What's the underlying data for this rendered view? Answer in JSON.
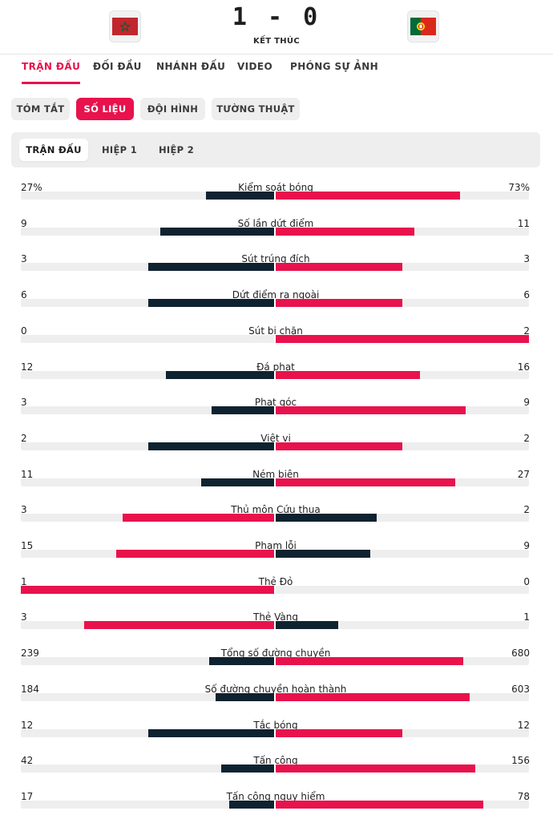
{
  "header": {
    "score": "1 - 0",
    "status": "KẾT THÚC",
    "home_flag": "morocco-flag",
    "away_flag": "portugal-flag"
  },
  "main_tabs": [
    {
      "label": "TRẬN ĐẤU",
      "active": true
    },
    {
      "label": "ĐỐI ĐẦU",
      "active": false
    },
    {
      "label": "NHÁNH ĐẤU",
      "active": false
    },
    {
      "label": "VIDEO",
      "active": false
    },
    {
      "label": "PHÓNG SỰ ẢNH",
      "active": false
    }
  ],
  "sub_tabs": [
    {
      "label": "TÓM TẮT",
      "active": false
    },
    {
      "label": "SỐ LIỆU",
      "active": true
    },
    {
      "label": "ĐỘI HÌNH",
      "active": false
    },
    {
      "label": "TƯỜNG THUẬT",
      "active": false
    }
  ],
  "periods": [
    {
      "label": "TRẬN ĐẤU",
      "active": true
    },
    {
      "label": "HIỆP 1",
      "active": false
    },
    {
      "label": "HIỆP 2",
      "active": false
    }
  ],
  "colors": {
    "accent": "#e8124d",
    "dark": "#0f2230",
    "track": "#eeeeee"
  },
  "stats": [
    {
      "label": "Kiểm soát bóng",
      "home": "27%",
      "away": "73%",
      "home_value": 27,
      "away_value": 73
    },
    {
      "label": "Số lần dứt điểm",
      "home": "9",
      "away": "11",
      "home_value": 9,
      "away_value": 11
    },
    {
      "label": "Sút trúng đích",
      "home": "3",
      "away": "3",
      "home_value": 3,
      "away_value": 3
    },
    {
      "label": "Dứt điểm ra ngoài",
      "home": "6",
      "away": "6",
      "home_value": 6,
      "away_value": 6
    },
    {
      "label": "Sút bị chặn",
      "home": "0",
      "away": "2",
      "home_value": 0,
      "away_value": 2
    },
    {
      "label": "Đá phạt",
      "home": "12",
      "away": "16",
      "home_value": 12,
      "away_value": 16
    },
    {
      "label": "Phạt góc",
      "home": "3",
      "away": "9",
      "home_value": 3,
      "away_value": 9
    },
    {
      "label": "Việt vị",
      "home": "2",
      "away": "2",
      "home_value": 2,
      "away_value": 2
    },
    {
      "label": "Ném biên",
      "home": "11",
      "away": "27",
      "home_value": 11,
      "away_value": 27
    },
    {
      "label": "Thủ môn Cứu thua",
      "home": "3",
      "away": "2",
      "home_value": 3,
      "away_value": 2
    },
    {
      "label": "Phạm lỗi",
      "home": "15",
      "away": "9",
      "home_value": 15,
      "away_value": 9
    },
    {
      "label": "Thẻ Đỏ",
      "home": "1",
      "away": "0",
      "home_value": 1,
      "away_value": 0
    },
    {
      "label": "Thẻ Vàng",
      "home": "3",
      "away": "1",
      "home_value": 3,
      "away_value": 1
    },
    {
      "label": "Tổng số đường chuyền",
      "home": "239",
      "away": "680",
      "home_value": 239,
      "away_value": 680
    },
    {
      "label": "Số đường chuyền hoàn thành",
      "home": "184",
      "away": "603",
      "home_value": 184,
      "away_value": 603
    },
    {
      "label": "Tắc bóng",
      "home": "12",
      "away": "12",
      "home_value": 12,
      "away_value": 12
    },
    {
      "label": "Tấn công",
      "home": "42",
      "away": "156",
      "home_value": 42,
      "away_value": 156
    },
    {
      "label": "Tấn công nguy hiểm",
      "home": "17",
      "away": "78",
      "home_value": 17,
      "away_value": 78
    }
  ]
}
